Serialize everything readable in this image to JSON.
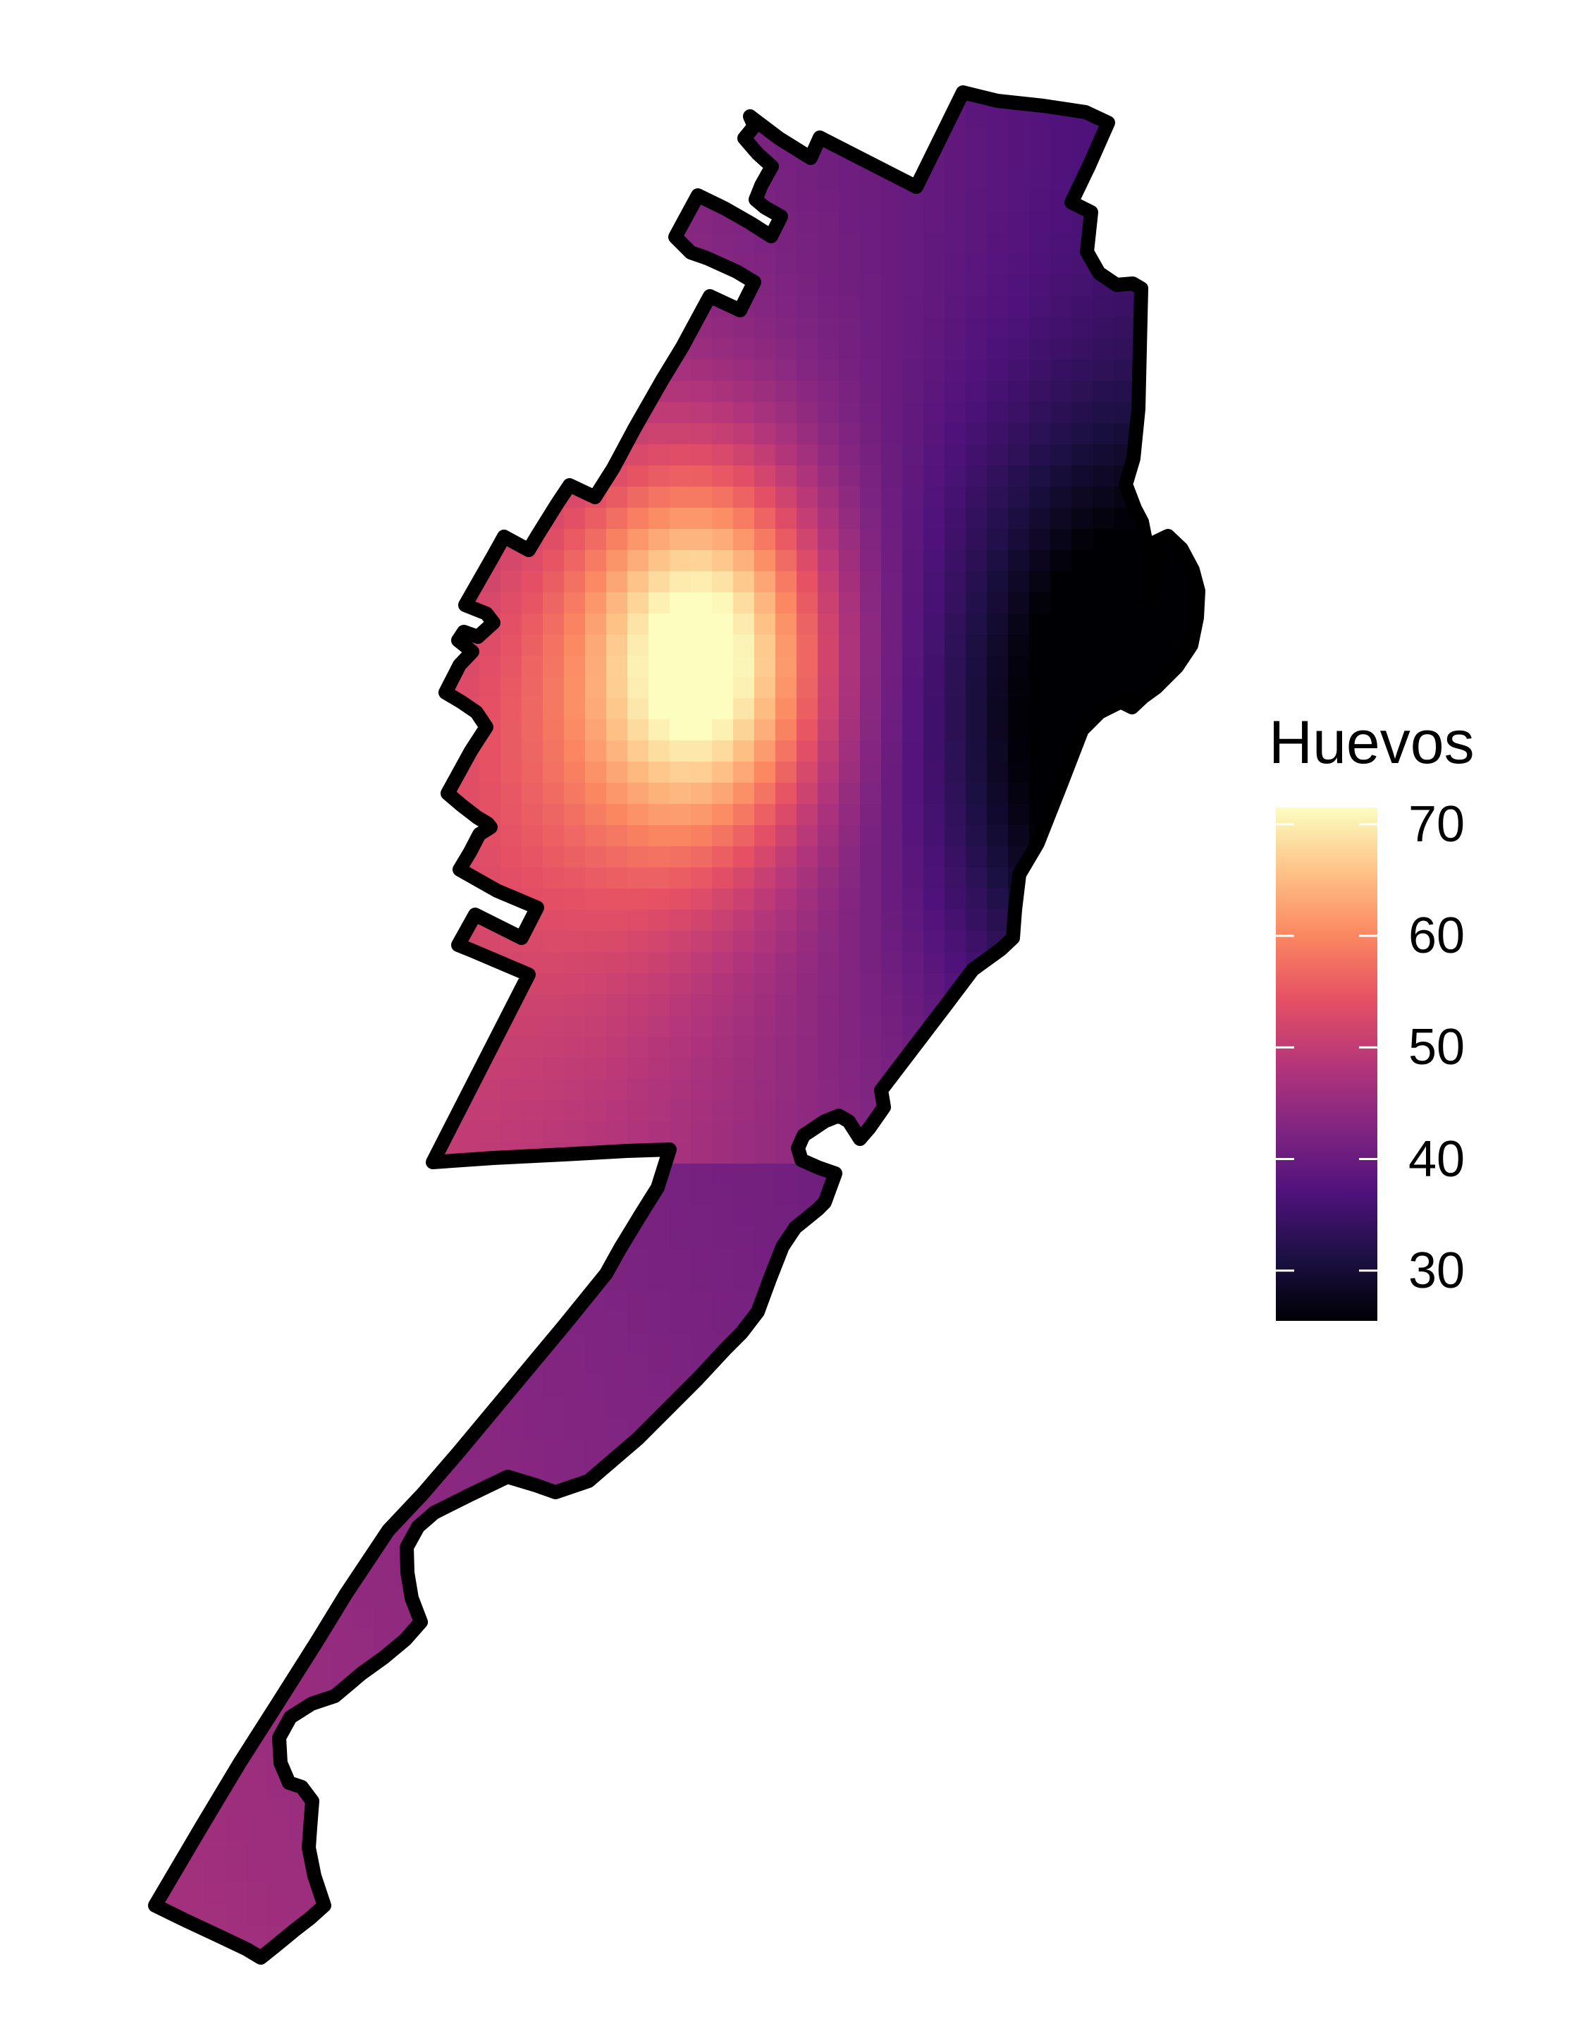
{
  "legend": {
    "title": "Huevos",
    "ticks": [
      {
        "value": 70,
        "label": "70"
      },
      {
        "value": 60,
        "label": "60"
      },
      {
        "value": 50,
        "label": "50"
      },
      {
        "value": 40,
        "label": "40"
      },
      {
        "value": 30,
        "label": "30"
      }
    ],
    "range": [
      25.5,
      71.5
    ],
    "colormap": "magma"
  },
  "fill_field": {
    "peak_value": 72,
    "peak_location": "center-west of the upper body",
    "min_value": 26,
    "min_location": "east edge of the upper body",
    "outline_color": "#000000"
  },
  "colors": {
    "magma_stops": [
      "#000004",
      "#1c1044",
      "#4f127b",
      "#812581",
      "#b5367a",
      "#e55064",
      "#fb8761",
      "#fec287",
      "#fcfdbf"
    ]
  }
}
